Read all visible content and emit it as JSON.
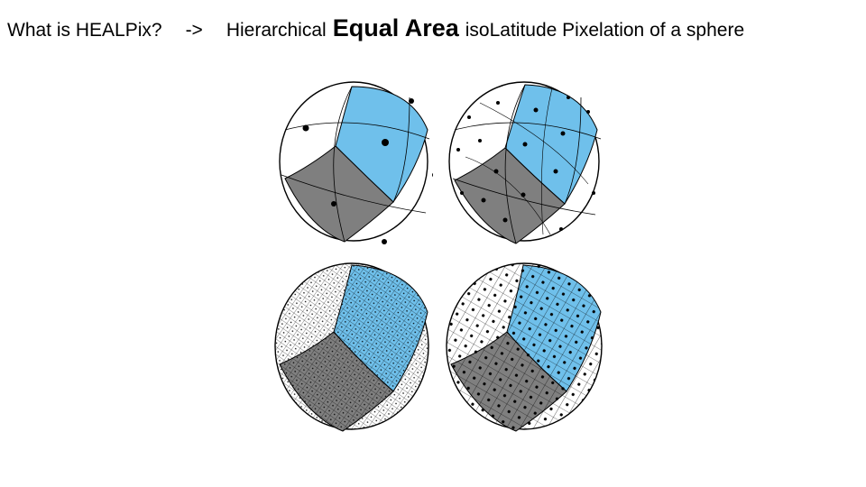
{
  "header": {
    "question": "What is HEALPix?",
    "arrow": "->",
    "prefix": "Hierarchical",
    "emphasis": "Equal Area",
    "suffix": "isoLatitude Pixelation of a sphere"
  },
  "colors": {
    "blue_pixel": "#6fc0eb",
    "gray_pixel": "#7f7f7f",
    "outline": "#000000",
    "background": "#ffffff"
  },
  "spheres": [
    {
      "id": "s1",
      "grid_level": 1,
      "grid_density": "sparse"
    },
    {
      "id": "s2",
      "grid_level": 2,
      "grid_density": "coarse"
    },
    {
      "id": "s3",
      "grid_level": 4,
      "grid_density": "fine"
    },
    {
      "id": "s4",
      "grid_level": 3,
      "grid_density": "medium"
    }
  ]
}
